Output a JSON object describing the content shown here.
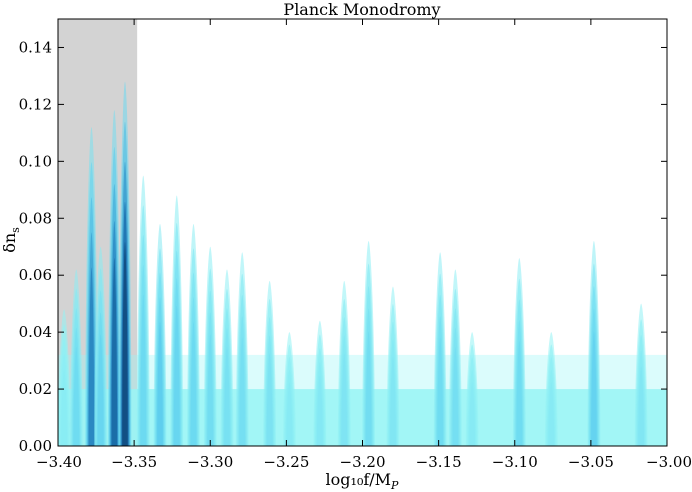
{
  "chart_data": {
    "type": "heatmap",
    "title": "Planck Monodromy",
    "xlabel": "log₁₀f/M",
    "xlabel_sub": "P",
    "ylabel": "δn",
    "ylabel_sub": "s",
    "xlim": [
      -3.4,
      -3.0
    ],
    "ylim": [
      0.0,
      0.15
    ],
    "x_ticks": [
      -3.4,
      -3.35,
      -3.3,
      -3.25,
      -3.2,
      -3.15,
      -3.1,
      -3.05,
      -3.0
    ],
    "x_tick_labels": [
      "−3.40",
      "−3.35",
      "−3.30",
      "−3.25",
      "−3.20",
      "−3.15",
      "−3.10",
      "−3.05",
      "−3.00"
    ],
    "y_ticks": [
      0.0,
      0.02,
      0.04,
      0.06,
      0.08,
      0.1,
      0.12,
      0.14
    ],
    "y_tick_labels": [
      "0.00",
      "0.02",
      "0.04",
      "0.06",
      "0.08",
      "0.10",
      "0.12",
      "0.14"
    ],
    "excluded_region": {
      "x_range": [
        -3.4,
        -3.348
      ],
      "color": "#d3d3d3"
    },
    "colors": {
      "low": "#98f5f5",
      "mid": "#5fd0ee",
      "high": "#1e78b8",
      "peak": "#082a55"
    },
    "grid": false,
    "base_band_ylim": [
      0.0,
      0.02
    ],
    "peaks": [
      {
        "x": -3.396,
        "top": 0.048,
        "intensity": 0.1
      },
      {
        "x": -3.388,
        "top": 0.062,
        "intensity": 0.28
      },
      {
        "x": -3.378,
        "top": 0.112,
        "intensity": 0.72
      },
      {
        "x": -3.372,
        "top": 0.07,
        "intensity": 0.34
      },
      {
        "x": -3.363,
        "top": 0.118,
        "intensity": 0.85
      },
      {
        "x": -3.356,
        "top": 0.128,
        "intensity": 1.0
      },
      {
        "x": -3.344,
        "top": 0.095,
        "intensity": 0.3
      },
      {
        "x": -3.333,
        "top": 0.078,
        "intensity": 0.4
      },
      {
        "x": -3.322,
        "top": 0.088,
        "intensity": 0.34
      },
      {
        "x": -3.311,
        "top": 0.078,
        "intensity": 0.3
      },
      {
        "x": -3.3,
        "top": 0.07,
        "intensity": 0.26
      },
      {
        "x": -3.289,
        "top": 0.062,
        "intensity": 0.22
      },
      {
        "x": -3.279,
        "top": 0.068,
        "intensity": 0.24
      },
      {
        "x": -3.261,
        "top": 0.058,
        "intensity": 0.2
      },
      {
        "x": -3.248,
        "top": 0.04,
        "intensity": 0.12
      },
      {
        "x": -3.228,
        "top": 0.044,
        "intensity": 0.14
      },
      {
        "x": -3.212,
        "top": 0.058,
        "intensity": 0.18
      },
      {
        "x": -3.196,
        "top": 0.072,
        "intensity": 0.26
      },
      {
        "x": -3.18,
        "top": 0.056,
        "intensity": 0.16
      },
      {
        "x": -3.149,
        "top": 0.068,
        "intensity": 0.28
      },
      {
        "x": -3.139,
        "top": 0.062,
        "intensity": 0.24
      },
      {
        "x": -3.128,
        "top": 0.04,
        "intensity": 0.12
      },
      {
        "x": -3.097,
        "top": 0.066,
        "intensity": 0.28
      },
      {
        "x": -3.076,
        "top": 0.04,
        "intensity": 0.12
      },
      {
        "x": -3.048,
        "top": 0.072,
        "intensity": 0.36
      },
      {
        "x": -3.017,
        "top": 0.05,
        "intensity": 0.16
      }
    ]
  }
}
